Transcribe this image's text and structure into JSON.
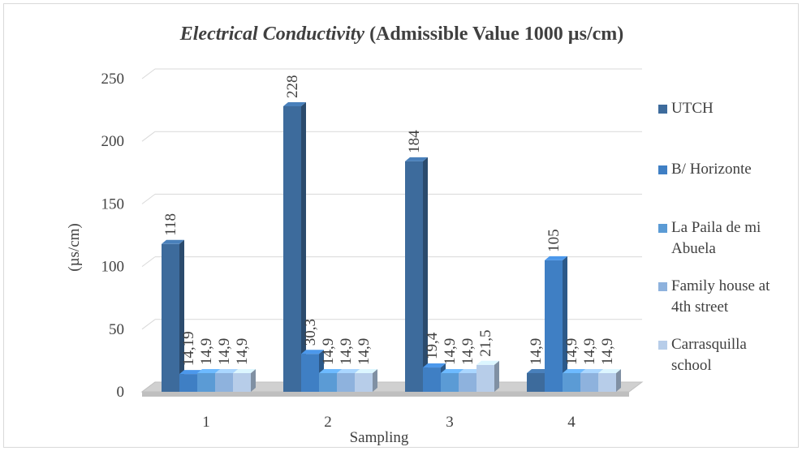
{
  "chart_data": {
    "type": "bar",
    "title_italic": "Electrical Conductivity",
    "title_rest": " (Admissible  Value 1000 µs/cm)",
    "xlabel": "Sampling",
    "ylabel": "(µs/cm)",
    "ylim": [
      0,
      250
    ],
    "yticks": [
      "0",
      "50",
      "100",
      "150",
      "200",
      "250"
    ],
    "categories": [
      "1",
      "2",
      "3",
      "4"
    ],
    "grid": true,
    "legend_position": "right",
    "series": [
      {
        "name": "UTCH",
        "values": [
          118,
          228,
          184,
          14.9
        ],
        "labels": [
          "118",
          "228",
          "184",
          "14,9"
        ],
        "color": "#3d6b9c"
      },
      {
        "name": "B/ Horizonte",
        "values": [
          14.19,
          30.3,
          19.4,
          105
        ],
        "labels": [
          "14,19",
          "30,3",
          "19,4",
          "105"
        ],
        "color": "#3f7fc4"
      },
      {
        "name": "La Paila de mi Abuela",
        "values": [
          14.9,
          14.9,
          14.9,
          14.9
        ],
        "labels": [
          "14,9",
          "14,9",
          "14,9",
          "14,9"
        ],
        "color": "#5b9bd5"
      },
      {
        "name": "Family house at 4th street",
        "values": [
          14.9,
          14.9,
          14.9,
          14.9
        ],
        "labels": [
          "14,9",
          "14,9",
          "14,9",
          "14,9"
        ],
        "color": "#8eb2dd"
      },
      {
        "name": "Carrasquilla school",
        "values": [
          14.9,
          14.9,
          21.5,
          14.9
        ],
        "labels": [
          "14,9",
          "14,9",
          "21,5",
          "14,9"
        ],
        "color": "#b7cde9"
      }
    ]
  },
  "legend_items": [
    {
      "line1": "UTCH",
      "line2": ""
    },
    {
      "line1": "B/ Horizonte",
      "line2": ""
    },
    {
      "line1": "La Paila de mi",
      "line2": "Abuela"
    },
    {
      "line1": "Family house at",
      "line2": "4th street"
    },
    {
      "line1": "Carrasquilla",
      "line2": "school"
    }
  ]
}
